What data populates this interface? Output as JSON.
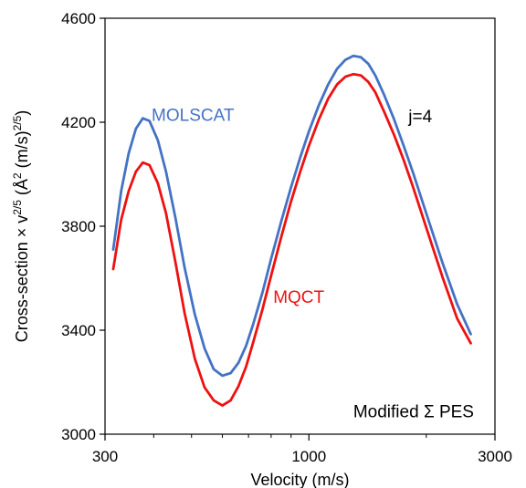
{
  "chart_data": {
    "type": "line",
    "title": "",
    "xlabel": "Velocity (m/s)",
    "ylabel": {
      "prefix": "Cross-section × v",
      "exp1": "2/5",
      "middle": " (Å",
      "exp2": "2",
      "middle2": " (m/s)",
      "exp3": "2/5",
      "suffix": ")"
    },
    "xscale": "log",
    "xlim": [
      300,
      3000
    ],
    "ylim": [
      3000,
      4600
    ],
    "xticks": [
      {
        "value": 300,
        "label": "300"
      },
      {
        "value": 1000,
        "label": "1000"
      },
      {
        "value": 3000,
        "label": "3000"
      }
    ],
    "yticks": [
      {
        "value": 3000,
        "label": "3000"
      },
      {
        "value": 3400,
        "label": "3400"
      },
      {
        "value": 3800,
        "label": "3800"
      },
      {
        "value": 4200,
        "label": "4200"
      },
      {
        "value": 4600,
        "label": "4600"
      }
    ],
    "xminor_ticks": [
      400,
      500,
      600,
      700,
      800,
      900,
      2000
    ],
    "grid": false,
    "legend": "none",
    "series": [
      {
        "name": "MOLSCAT",
        "color": "#4472C4",
        "x": [
          315,
          330,
          345,
          360,
          375,
          390,
          410,
          430,
          455,
          480,
          510,
          540,
          570,
          600,
          630,
          660,
          690,
          720,
          760,
          800,
          850,
          900,
          950,
          1000,
          1060,
          1120,
          1180,
          1240,
          1300,
          1360,
          1420,
          1480,
          1560,
          1650,
          1750,
          1850,
          1950,
          2050,
          2200,
          2400,
          2600
        ],
        "values": [
          3710,
          3935,
          4080,
          4175,
          4215,
          4205,
          4130,
          4010,
          3830,
          3640,
          3460,
          3330,
          3250,
          3225,
          3235,
          3275,
          3340,
          3425,
          3545,
          3675,
          3820,
          3950,
          4065,
          4165,
          4265,
          4345,
          4405,
          4440,
          4455,
          4450,
          4425,
          4380,
          4305,
          4215,
          4110,
          4005,
          3900,
          3800,
          3660,
          3500,
          3385
        ]
      },
      {
        "name": "MQCT",
        "color": "#EE1111",
        "x": [
          315,
          330,
          345,
          360,
          375,
          390,
          410,
          430,
          455,
          480,
          510,
          540,
          570,
          600,
          630,
          660,
          690,
          720,
          760,
          800,
          850,
          900,
          950,
          1000,
          1060,
          1120,
          1180,
          1240,
          1300,
          1360,
          1420,
          1480,
          1560,
          1650,
          1750,
          1850,
          1950,
          2050,
          2200,
          2400,
          2600
        ],
        "values": [
          3635,
          3825,
          3935,
          4010,
          4045,
          4035,
          3965,
          3850,
          3660,
          3465,
          3290,
          3180,
          3130,
          3110,
          3130,
          3185,
          3260,
          3355,
          3480,
          3610,
          3760,
          3895,
          4010,
          4110,
          4210,
          4290,
          4345,
          4375,
          4385,
          4380,
          4355,
          4315,
          4240,
          4155,
          4055,
          3950,
          3845,
          3745,
          3605,
          3445,
          3350
        ]
      }
    ],
    "series_labels": [
      {
        "text": "MOLSCAT",
        "color": "#4472C4",
        "x": 395,
        "y": 4205
      },
      {
        "text": "MQCT",
        "color": "#EE1111",
        "x": 810,
        "y": 3505
      }
    ],
    "annotations": [
      {
        "text": "j=4",
        "x": 1800,
        "y": 4200
      },
      {
        "text": "Modified Σ PES",
        "x": 2650,
        "y": 3065,
        "anchor": "end"
      }
    ]
  }
}
